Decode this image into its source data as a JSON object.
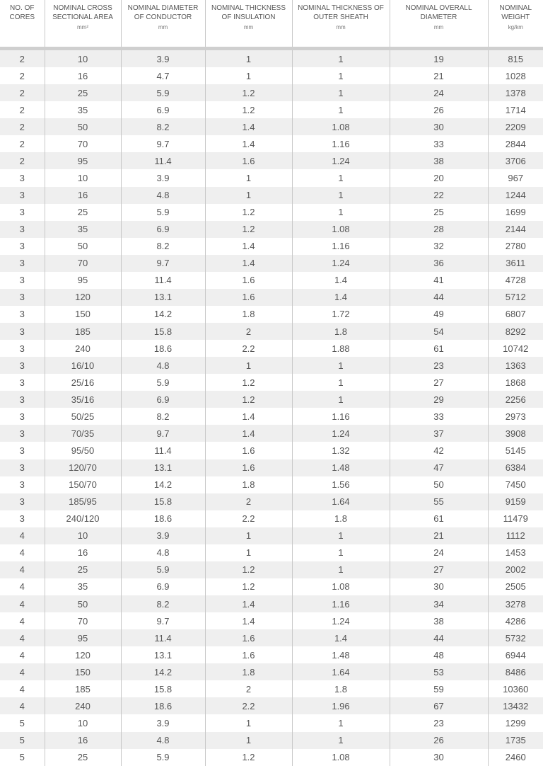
{
  "headers": [
    {
      "label": "NO. OF CORES",
      "unit": ""
    },
    {
      "label": "NOMINAL CROSS SECTIONAL AREA",
      "unit": "mm²"
    },
    {
      "label": "NOMINAL DIAMETER OF CONDUCTOR",
      "unit": "mm"
    },
    {
      "label": "NOMINAL THICKNESS OF INSULATION",
      "unit": "mm"
    },
    {
      "label": "NOMINAL THICKNESS OF OUTER SHEATH",
      "unit": "mm"
    },
    {
      "label": "NOMINAL OVERALL DIAMETER",
      "unit": "mm"
    },
    {
      "label": "NOMINAL WEIGHT",
      "unit": "kg/km"
    }
  ],
  "rows": [
    [
      "2",
      "10",
      "3.9",
      "1",
      "1",
      "19",
      "815"
    ],
    [
      "2",
      "16",
      "4.7",
      "1",
      "1",
      "21",
      "1028"
    ],
    [
      "2",
      "25",
      "5.9",
      "1.2",
      "1",
      "24",
      "1378"
    ],
    [
      "2",
      "35",
      "6.9",
      "1.2",
      "1",
      "26",
      "1714"
    ],
    [
      "2",
      "50",
      "8.2",
      "1.4",
      "1.08",
      "30",
      "2209"
    ],
    [
      "2",
      "70",
      "9.7",
      "1.4",
      "1.16",
      "33",
      "2844"
    ],
    [
      "2",
      "95",
      "11.4",
      "1.6",
      "1.24",
      "38",
      "3706"
    ],
    [
      "3",
      "10",
      "3.9",
      "1",
      "1",
      "20",
      "967"
    ],
    [
      "3",
      "16",
      "4.8",
      "1",
      "1",
      "22",
      "1244"
    ],
    [
      "3",
      "25",
      "5.9",
      "1.2",
      "1",
      "25",
      "1699"
    ],
    [
      "3",
      "35",
      "6.9",
      "1.2",
      "1.08",
      "28",
      "2144"
    ],
    [
      "3",
      "50",
      "8.2",
      "1.4",
      "1.16",
      "32",
      "2780"
    ],
    [
      "3",
      "70",
      "9.7",
      "1.4",
      "1.24",
      "36",
      "3611"
    ],
    [
      "3",
      "95",
      "11.4",
      "1.6",
      "1.4",
      "41",
      "4728"
    ],
    [
      "3",
      "120",
      "13.1",
      "1.6",
      "1.4",
      "44",
      "5712"
    ],
    [
      "3",
      "150",
      "14.2",
      "1.8",
      "1.72",
      "49",
      "6807"
    ],
    [
      "3",
      "185",
      "15.8",
      "2",
      "1.8",
      "54",
      "8292"
    ],
    [
      "3",
      "240",
      "18.6",
      "2.2",
      "1.88",
      "61",
      "10742"
    ],
    [
      "3",
      "16/10",
      "4.8",
      "1",
      "1",
      "23",
      "1363"
    ],
    [
      "3",
      "25/16",
      "5.9",
      "1.2",
      "1",
      "27",
      "1868"
    ],
    [
      "3",
      "35/16",
      "6.9",
      "1.2",
      "1",
      "29",
      "2256"
    ],
    [
      "3",
      "50/25",
      "8.2",
      "1.4",
      "1.16",
      "33",
      "2973"
    ],
    [
      "3",
      "70/35",
      "9.7",
      "1.4",
      "1.24",
      "37",
      "3908"
    ],
    [
      "3",
      "95/50",
      "11.4",
      "1.6",
      "1.32",
      "42",
      "5145"
    ],
    [
      "3",
      "120/70",
      "13.1",
      "1.6",
      "1.48",
      "47",
      "6384"
    ],
    [
      "3",
      "150/70",
      "14.2",
      "1.8",
      "1.56",
      "50",
      "7450"
    ],
    [
      "3",
      "185/95",
      "15.8",
      "2",
      "1.64",
      "55",
      "9159"
    ],
    [
      "3",
      "240/120",
      "18.6",
      "2.2",
      "1.8",
      "61",
      "11479"
    ],
    [
      "4",
      "10",
      "3.9",
      "1",
      "1",
      "21",
      "1112"
    ],
    [
      "4",
      "16",
      "4.8",
      "1",
      "1",
      "24",
      "1453"
    ],
    [
      "4",
      "25",
      "5.9",
      "1.2",
      "1",
      "27",
      "2002"
    ],
    [
      "4",
      "35",
      "6.9",
      "1.2",
      "1.08",
      "30",
      "2505"
    ],
    [
      "4",
      "50",
      "8.2",
      "1.4",
      "1.16",
      "34",
      "3278"
    ],
    [
      "4",
      "70",
      "9.7",
      "1.4",
      "1.24",
      "38",
      "4286"
    ],
    [
      "4",
      "95",
      "11.4",
      "1.6",
      "1.4",
      "44",
      "5732"
    ],
    [
      "4",
      "120",
      "13.1",
      "1.6",
      "1.48",
      "48",
      "6944"
    ],
    [
      "4",
      "150",
      "14.2",
      "1.8",
      "1.64",
      "53",
      "8486"
    ],
    [
      "4",
      "185",
      "15.8",
      "2",
      "1.8",
      "59",
      "10360"
    ],
    [
      "4",
      "240",
      "18.6",
      "2.2",
      "1.96",
      "67",
      "13432"
    ],
    [
      "5",
      "10",
      "3.9",
      "1",
      "1",
      "23",
      "1299"
    ],
    [
      "5",
      "16",
      "4.8",
      "1",
      "1",
      "26",
      "1735"
    ],
    [
      "5",
      "25",
      "5.9",
      "1.2",
      "1.08",
      "30",
      "2460"
    ]
  ]
}
